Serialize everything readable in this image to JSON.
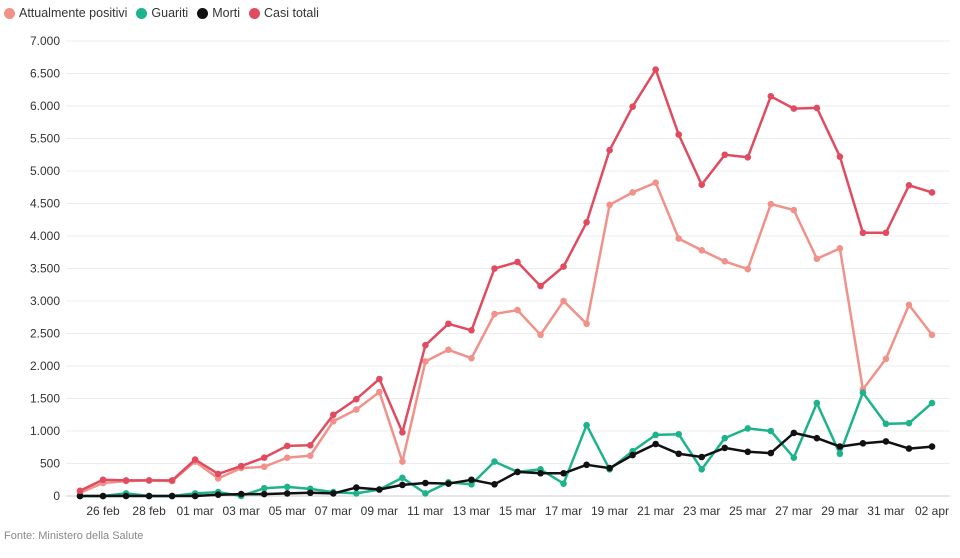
{
  "chart_data": {
    "type": "line",
    "title": "",
    "xlabel": "",
    "ylabel": "",
    "ylim": [
      0,
      7000
    ],
    "y_ticks": [
      0,
      500,
      1000,
      1500,
      2000,
      2500,
      3000,
      3500,
      4000,
      4500,
      5000,
      5500,
      6000,
      6500,
      7000
    ],
    "y_tick_labels": [
      "0",
      "500",
      "1.000",
      "1.500",
      "2.000",
      "2.500",
      "3.000",
      "3.500",
      "4.000",
      "4.500",
      "5.000",
      "5.500",
      "6.000",
      "6.500",
      "7.000"
    ],
    "x_tick_labels": [
      "26 feb",
      "28 feb",
      "01 mar",
      "03 mar",
      "05 mar",
      "07 mar",
      "09 mar",
      "11 mar",
      "13 mar",
      "15 mar",
      "17 mar",
      "19 mar",
      "21 mar",
      "23 mar",
      "25 mar",
      "27 mar",
      "29 mar",
      "31 mar",
      "02 apr"
    ],
    "x": [
      "25 feb",
      "26 feb",
      "27 feb",
      "28 feb",
      "29 feb",
      "01 mar",
      "02 mar",
      "03 mar",
      "04 mar",
      "05 mar",
      "06 mar",
      "07 mar",
      "08 mar",
      "09 mar",
      "10 mar",
      "11 mar",
      "12 mar",
      "13 mar",
      "14 mar",
      "15 mar",
      "16 mar",
      "17 mar",
      "18 mar",
      "19 mar",
      "20 mar",
      "21 mar",
      "22 mar",
      "23 mar",
      "24 mar",
      "25 mar",
      "26 mar",
      "27 mar",
      "28 mar",
      "29 mar",
      "30 mar",
      "31 mar",
      "01 apr",
      "02 apr"
    ],
    "legend_position": "top-left",
    "grid": true,
    "series": [
      {
        "name": "Attualmente positivi",
        "color": "#f0928a",
        "values": [
          50,
          200,
          230,
          240,
          230,
          530,
          270,
          430,
          450,
          590,
          620,
          1150,
          1330,
          1600,
          530,
          2070,
          2250,
          2120,
          2800,
          2860,
          2480,
          3000,
          2650,
          4480,
          4670,
          4820,
          3960,
          3780,
          3610,
          3490,
          4490,
          4400,
          3650,
          3810,
          1640,
          2110,
          2940,
          2480
        ]
      },
      {
        "name": "Guariti",
        "color": "#1db38c",
        "values": [
          0,
          0,
          40,
          0,
          0,
          40,
          60,
          0,
          120,
          140,
          110,
          60,
          40,
          100,
          280,
          40,
          210,
          180,
          530,
          370,
          410,
          190,
          1090,
          410,
          690,
          940,
          950,
          410,
          890,
          1040,
          1000,
          590,
          1430,
          650,
          1590,
          1110,
          1120,
          1430
        ]
      },
      {
        "name": "Morti",
        "color": "#111111",
        "values": [
          0,
          0,
          0,
          0,
          0,
          0,
          20,
          30,
          30,
          40,
          50,
          40,
          130,
          100,
          170,
          200,
          190,
          250,
          180,
          370,
          350,
          350,
          480,
          430,
          630,
          800,
          650,
          600,
          740,
          680,
          660,
          970,
          890,
          760,
          810,
          840,
          730,
          760
        ]
      },
      {
        "name": "Casi totali",
        "color": "#e14b60",
        "values": [
          80,
          250,
          240,
          240,
          240,
          560,
          340,
          460,
          590,
          770,
          780,
          1250,
          1490,
          1800,
          980,
          2320,
          2650,
          2550,
          3500,
          3600,
          3230,
          3530,
          4210,
          5320,
          5990,
          6560,
          5560,
          4790,
          5250,
          5210,
          6150,
          5960,
          5970,
          5220,
          4050,
          4050,
          4780,
          4670
        ]
      }
    ]
  },
  "source": "Fonte: Ministero della Salute"
}
